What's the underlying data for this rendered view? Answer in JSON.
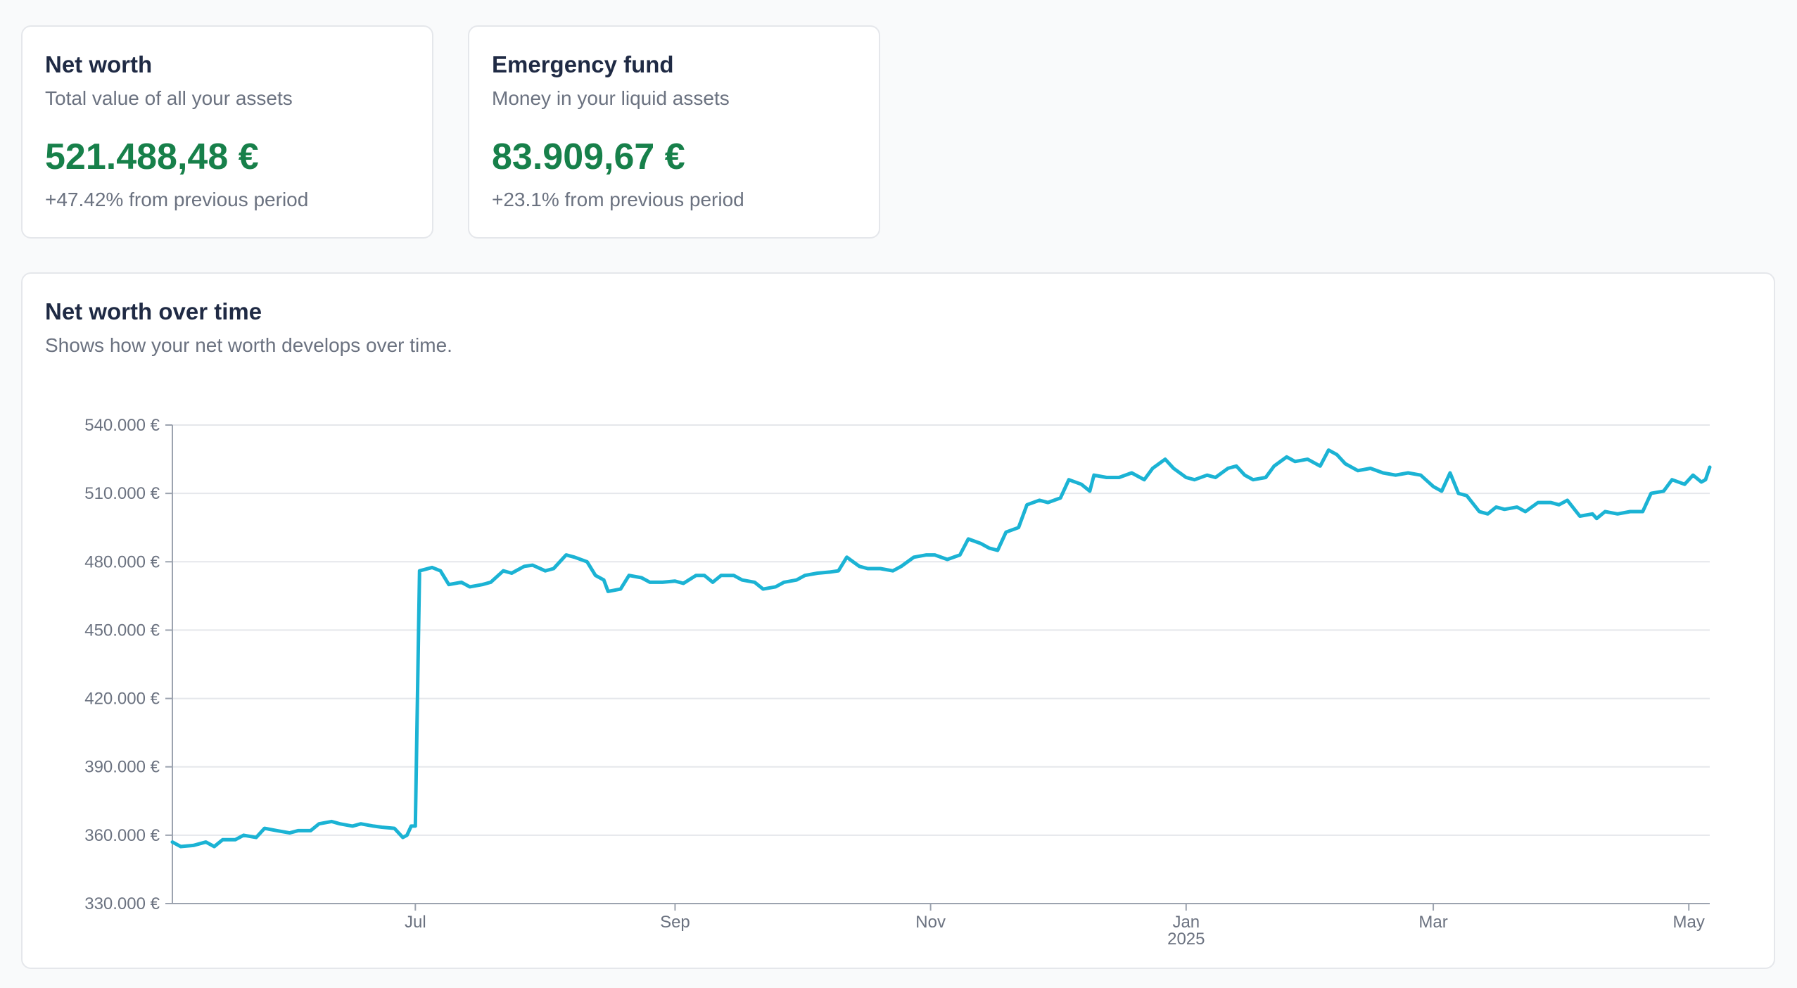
{
  "net_worth_card": {
    "title": "Net worth",
    "subtitle": "Total value of all your assets",
    "value": "521.488,48 €",
    "change": "+47.42% from previous period"
  },
  "emergency_card": {
    "title": "Emergency fund",
    "subtitle": "Money in your liquid assets",
    "value": "83.909,67 €",
    "change": "+23.1% from previous period"
  },
  "chart_card": {
    "title": "Net worth over time",
    "subtitle": "Shows how your net worth develops over time."
  },
  "colors": {
    "line": "#1bb3d4",
    "value_green": "#17804a",
    "grid": "#e5e7eb"
  },
  "chart_data": {
    "type": "line",
    "title": "",
    "xlabel": "",
    "ylabel": "",
    "ylim": [
      330000,
      540000
    ],
    "xlim": [
      "2024-05-04",
      "2025-05-06"
    ],
    "y_ticks": [
      330000,
      360000,
      390000,
      420000,
      450000,
      480000,
      510000,
      540000
    ],
    "y_tick_labels": [
      "330.000 €",
      "360.000 €",
      "390.000 €",
      "420.000 €",
      "450.000 €",
      "480.000 €",
      "510.000 €",
      "540.000 €"
    ],
    "x_ticks": [
      {
        "date": "2024-07-01",
        "label": "Jul",
        "sublabel": ""
      },
      {
        "date": "2024-09-01",
        "label": "Sep",
        "sublabel": ""
      },
      {
        "date": "2024-11-01",
        "label": "Nov",
        "sublabel": ""
      },
      {
        "date": "2025-01-01",
        "label": "Jan",
        "sublabel": "2025"
      },
      {
        "date": "2025-03-01",
        "label": "Mar",
        "sublabel": ""
      },
      {
        "date": "2025-05-01",
        "label": "May",
        "sublabel": ""
      }
    ],
    "grid": true,
    "series": [
      {
        "name": "",
        "points": [
          [
            "2024-05-04",
            357000
          ],
          [
            "2024-05-06",
            355000
          ],
          [
            "2024-05-09",
            355500
          ],
          [
            "2024-05-12",
            357000
          ],
          [
            "2024-05-14",
            355000
          ],
          [
            "2024-05-16",
            358000
          ],
          [
            "2024-05-19",
            358000
          ],
          [
            "2024-05-21",
            360000
          ],
          [
            "2024-05-24",
            359000
          ],
          [
            "2024-05-26",
            363000
          ],
          [
            "2024-05-29",
            362000
          ],
          [
            "2024-06-01",
            361000
          ],
          [
            "2024-06-03",
            362000
          ],
          [
            "2024-06-06",
            362000
          ],
          [
            "2024-06-08",
            365000
          ],
          [
            "2024-06-11",
            366000
          ],
          [
            "2024-06-13",
            365000
          ],
          [
            "2024-06-16",
            364000
          ],
          [
            "2024-06-18",
            365000
          ],
          [
            "2024-06-21",
            364000
          ],
          [
            "2024-06-23",
            363500
          ],
          [
            "2024-06-26",
            363000
          ],
          [
            "2024-06-28",
            359000
          ],
          [
            "2024-06-29",
            360000
          ],
          [
            "2024-06-30",
            364000
          ],
          [
            "2024-07-01",
            364000
          ],
          [
            "2024-07-02",
            476000
          ],
          [
            "2024-07-05",
            477500
          ],
          [
            "2024-07-07",
            476000
          ],
          [
            "2024-07-09",
            470000
          ],
          [
            "2024-07-12",
            471000
          ],
          [
            "2024-07-14",
            469000
          ],
          [
            "2024-07-17",
            470000
          ],
          [
            "2024-07-19",
            471000
          ],
          [
            "2024-07-22",
            476000
          ],
          [
            "2024-07-24",
            475000
          ],
          [
            "2024-07-27",
            478000
          ],
          [
            "2024-07-29",
            478500
          ],
          [
            "2024-08-01",
            476000
          ],
          [
            "2024-08-03",
            477000
          ],
          [
            "2024-08-06",
            483000
          ],
          [
            "2024-08-08",
            482000
          ],
          [
            "2024-08-11",
            480000
          ],
          [
            "2024-08-13",
            474000
          ],
          [
            "2024-08-15",
            472000
          ],
          [
            "2024-08-16",
            467000
          ],
          [
            "2024-08-19",
            468000
          ],
          [
            "2024-08-21",
            474000
          ],
          [
            "2024-08-24",
            473000
          ],
          [
            "2024-08-26",
            471000
          ],
          [
            "2024-08-29",
            471000
          ],
          [
            "2024-09-01",
            471500
          ],
          [
            "2024-09-03",
            470500
          ],
          [
            "2024-09-06",
            474000
          ],
          [
            "2024-09-08",
            474000
          ],
          [
            "2024-09-10",
            471000
          ],
          [
            "2024-09-12",
            474000
          ],
          [
            "2024-09-15",
            474000
          ],
          [
            "2024-09-17",
            472000
          ],
          [
            "2024-09-20",
            471000
          ],
          [
            "2024-09-22",
            468000
          ],
          [
            "2024-09-25",
            469000
          ],
          [
            "2024-09-27",
            471000
          ],
          [
            "2024-09-30",
            472000
          ],
          [
            "2024-10-02",
            474000
          ],
          [
            "2024-10-05",
            475000
          ],
          [
            "2024-10-08",
            475500
          ],
          [
            "2024-10-10",
            476000
          ],
          [
            "2024-10-12",
            482000
          ],
          [
            "2024-10-15",
            478000
          ],
          [
            "2024-10-17",
            477000
          ],
          [
            "2024-10-20",
            477000
          ],
          [
            "2024-10-23",
            476000
          ],
          [
            "2024-10-25",
            478000
          ],
          [
            "2024-10-28",
            482000
          ],
          [
            "2024-10-31",
            483000
          ],
          [
            "2024-11-02",
            483000
          ],
          [
            "2024-11-05",
            481000
          ],
          [
            "2024-11-08",
            483000
          ],
          [
            "2024-11-10",
            490000
          ],
          [
            "2024-11-13",
            488000
          ],
          [
            "2024-11-15",
            486000
          ],
          [
            "2024-11-17",
            485000
          ],
          [
            "2024-11-19",
            493000
          ],
          [
            "2024-11-22",
            495000
          ],
          [
            "2024-11-24",
            505000
          ],
          [
            "2024-11-27",
            507000
          ],
          [
            "2024-11-29",
            506000
          ],
          [
            "2024-12-02",
            508000
          ],
          [
            "2024-12-04",
            516000
          ],
          [
            "2024-12-07",
            514000
          ],
          [
            "2024-12-09",
            511000
          ],
          [
            "2024-12-10",
            518000
          ],
          [
            "2024-12-13",
            517000
          ],
          [
            "2024-12-16",
            517000
          ],
          [
            "2024-12-19",
            519000
          ],
          [
            "2024-12-22",
            516000
          ],
          [
            "2024-12-24",
            521000
          ],
          [
            "2024-12-27",
            525000
          ],
          [
            "2024-12-29",
            521000
          ],
          [
            "2025-01-01",
            517000
          ],
          [
            "2025-01-03",
            516000
          ],
          [
            "2025-01-06",
            518000
          ],
          [
            "2025-01-08",
            517000
          ],
          [
            "2025-01-11",
            521000
          ],
          [
            "2025-01-13",
            522000
          ],
          [
            "2025-01-15",
            518000
          ],
          [
            "2025-01-17",
            516000
          ],
          [
            "2025-01-20",
            517000
          ],
          [
            "2025-01-22",
            522000
          ],
          [
            "2025-01-25",
            526000
          ],
          [
            "2025-01-27",
            524000
          ],
          [
            "2025-01-30",
            525000
          ],
          [
            "2025-02-02",
            522000
          ],
          [
            "2025-02-04",
            529000
          ],
          [
            "2025-02-06",
            527000
          ],
          [
            "2025-02-08",
            523000
          ],
          [
            "2025-02-11",
            520000
          ],
          [
            "2025-02-14",
            521000
          ],
          [
            "2025-02-17",
            519000
          ],
          [
            "2025-02-20",
            518000
          ],
          [
            "2025-02-23",
            519000
          ],
          [
            "2025-02-26",
            518000
          ],
          [
            "2025-03-01",
            513000
          ],
          [
            "2025-03-03",
            511000
          ],
          [
            "2025-03-05",
            519000
          ],
          [
            "2025-03-07",
            510000
          ],
          [
            "2025-03-09",
            509000
          ],
          [
            "2025-03-12",
            502000
          ],
          [
            "2025-03-14",
            501000
          ],
          [
            "2025-03-16",
            504000
          ],
          [
            "2025-03-18",
            503000
          ],
          [
            "2025-03-21",
            504000
          ],
          [
            "2025-03-23",
            502000
          ],
          [
            "2025-03-26",
            506000
          ],
          [
            "2025-03-29",
            506000
          ],
          [
            "2025-03-31",
            505000
          ],
          [
            "2025-04-02",
            507000
          ],
          [
            "2025-04-05",
            500000
          ],
          [
            "2025-04-08",
            501000
          ],
          [
            "2025-04-09",
            499000
          ],
          [
            "2025-04-11",
            502000
          ],
          [
            "2025-04-14",
            501000
          ],
          [
            "2025-04-17",
            502000
          ],
          [
            "2025-04-20",
            502000
          ],
          [
            "2025-04-22",
            510000
          ],
          [
            "2025-04-25",
            511000
          ],
          [
            "2025-04-27",
            516000
          ],
          [
            "2025-04-30",
            514000
          ],
          [
            "2025-05-02",
            518000
          ],
          [
            "2025-05-04",
            515000
          ],
          [
            "2025-05-05",
            516000
          ],
          [
            "2025-05-06",
            521488
          ]
        ]
      }
    ]
  }
}
